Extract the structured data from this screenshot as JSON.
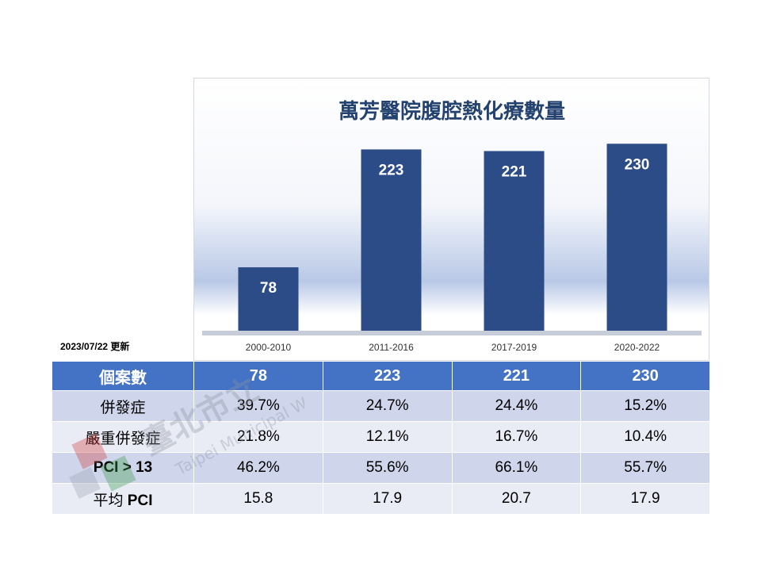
{
  "chart_data": {
    "type": "bar",
    "title": "萬芳醫院腹腔熱化療數量",
    "categories": [
      "2000-2010",
      "2011-2016",
      "2017-2019",
      "2020-2022"
    ],
    "values": [
      78,
      223,
      221,
      230
    ],
    "ylim": [
      0,
      240
    ],
    "bar_color": "#2b4c87",
    "label_color": "#ffffff",
    "grid": false,
    "legend": "none"
  },
  "update_note": "2023/07/22 更新",
  "table": {
    "header": {
      "label": "個案數",
      "values": [
        "78",
        "223",
        "221",
        "230"
      ]
    },
    "rows": [
      {
        "label": "併發症",
        "values": [
          "39.7%",
          "24.7%",
          "24.4%",
          "15.2%"
        ]
      },
      {
        "label": "嚴重併發症",
        "values": [
          "21.8%",
          "12.1%",
          "16.7%",
          "10.4%"
        ]
      },
      {
        "label": "PCI > 13",
        "values": [
          "46.2%",
          "55.6%",
          "66.1%",
          "55.7%"
        ]
      },
      {
        "label_plain": "平均 ",
        "label_bold": "PCI",
        "values": [
          "15.8",
          "17.9",
          "20.7",
          "17.9"
        ]
      }
    ]
  },
  "watermark": {
    "text_cn": "臺北市立",
    "text_en": "Taipei Municipal Wan Fang"
  }
}
